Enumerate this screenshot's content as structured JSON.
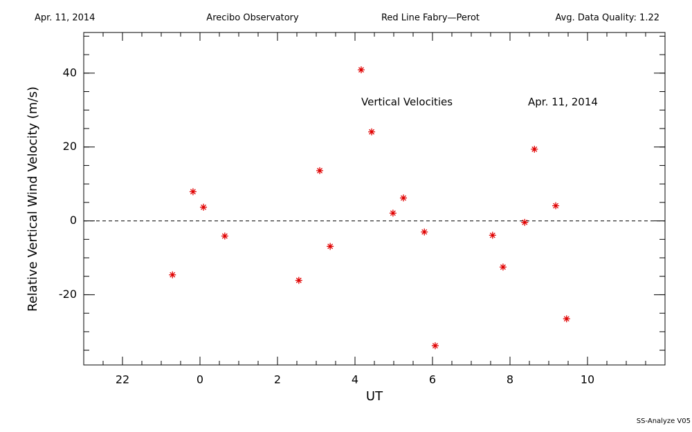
{
  "chart_data": {
    "type": "scatter",
    "header": [
      "Apr. 11, 2014",
      "Arecibo Observatory",
      "Red Line Fabry—Perot",
      "Avg. Data Quality: 1.22"
    ],
    "annotations": [
      "Vertical Velocities",
      "Apr. 11, 2014"
    ],
    "footer": "SS-Analyze V05",
    "x_label": "UT",
    "y_label": "Relative Vertical Wind Velocity (m/s)",
    "color": "#e00000",
    "x": [
      -0.71,
      -0.18,
      0.09,
      0.64,
      2.55,
      3.09,
      3.36,
      4.16,
      4.43,
      4.98,
      5.25,
      5.79,
      6.07,
      7.55,
      7.82,
      8.38,
      8.63,
      9.18,
      9.46
    ],
    "values": [
      -14.6,
      7.9,
      3.7,
      -4.1,
      -16.1,
      13.6,
      -6.9,
      40.9,
      24.1,
      2.1,
      6.2,
      -3.0,
      -33.8,
      -3.9,
      -12.5,
      -0.4,
      19.4,
      4.1,
      -26.5
    ],
    "xlim": [
      -3,
      12
    ],
    "ylim": [
      -39,
      51
    ],
    "xticks": [
      {
        "value": -2,
        "label": "22"
      },
      0,
      2,
      4,
      6,
      8,
      10
    ],
    "yticks": [
      -20,
      0,
      20,
      40
    ],
    "xminor_step": 0.5,
    "yminor_step": 5,
    "hline": 0
  }
}
